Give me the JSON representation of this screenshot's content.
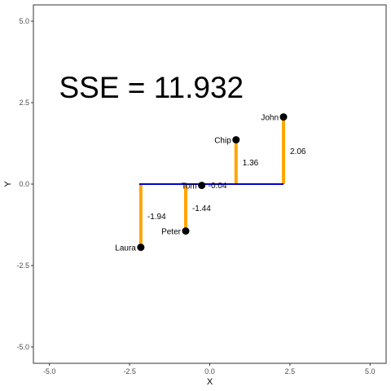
{
  "chart_data": {
    "type": "scatter",
    "title": "",
    "xlabel": "X",
    "ylabel": "Y",
    "xlim": [
      -5.5,
      5.5
    ],
    "ylim": [
      -5.5,
      5.5
    ],
    "xticks": [
      -5.0,
      -2.5,
      0.0,
      2.5,
      5.0
    ],
    "xtick_labels": [
      "-5.0",
      "-2.5",
      "0.0",
      "2.5",
      "5.0"
    ],
    "yticks": [
      -5.0,
      -2.5,
      0.0,
      2.5,
      5.0
    ],
    "ytick_labels": [
      "-5.0",
      "-2.5",
      "0.0",
      "2.5",
      "5.0"
    ],
    "grid": false,
    "annotation": {
      "text": "SSE = 11.932",
      "x": -4.7,
      "y": 3.0
    },
    "fit_line": {
      "x": [
        -2.2,
        2.3
      ],
      "y": [
        0.0,
        0.0
      ],
      "color": "#0000cc"
    },
    "points": [
      {
        "name": "Laura",
        "x": -2.15,
        "y": -1.94,
        "residual": "-1.94"
      },
      {
        "name": "Peter",
        "x": -0.75,
        "y": -1.44,
        "residual": "-1.44"
      },
      {
        "name": "Tom",
        "x": -0.25,
        "y": -0.04,
        "residual": "-0.04"
      },
      {
        "name": "Chip",
        "x": 0.82,
        "y": 1.36,
        "residual": "1.36"
      },
      {
        "name": "John",
        "x": 2.3,
        "y": 2.06,
        "residual": "2.06"
      }
    ],
    "residual_color": "#ffa500",
    "point_color": "#000000"
  }
}
